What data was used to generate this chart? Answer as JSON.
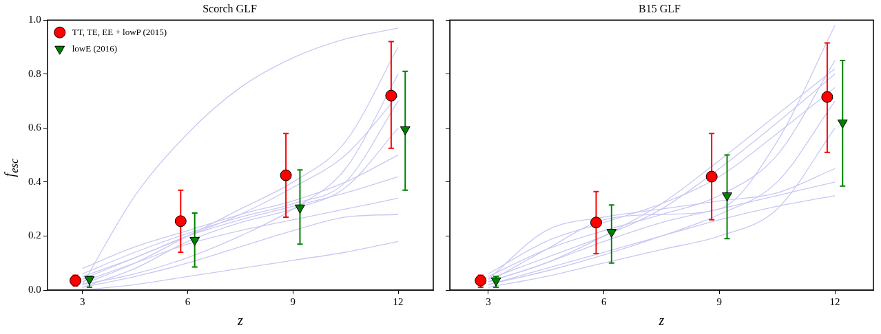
{
  "chart_data": [
    {
      "type": "scatter",
      "title": "Scorch GLF",
      "xlabel": "z",
      "ylabel": "f$_{esc}$",
      "xlim": [
        2,
        13
      ],
      "ylim": [
        0,
        1.0
      ],
      "xticks": [
        3,
        6,
        9,
        12
      ],
      "yticks": [
        {
          "value": 0,
          "label": "0.0"
        },
        {
          "value": 0.2,
          "label": "0.2"
        },
        {
          "value": 0.4,
          "label": "0.4"
        },
        {
          "value": 0.6,
          "label": "0.6"
        },
        {
          "value": 0.8,
          "label": "0.8"
        },
        {
          "value": 1.0,
          "label": "1.0"
        }
      ],
      "grid": false,
      "legend": "top left",
      "series": [
        {
          "name": "TT, TE, EE + lowP (2015)",
          "color": "#ff0000",
          "marker": "circle",
          "x": [
            2.8,
            5.8,
            8.8,
            11.8
          ],
          "values": [
            0.035,
            0.255,
            0.425,
            0.72
          ],
          "errors": [
            [
              0.015,
              0.055
            ],
            [
              0.14,
              0.37
            ],
            [
              0.27,
              0.58
            ],
            [
              0.525,
              0.92
            ]
          ]
        },
        {
          "name": "lowE (2016)",
          "color": "#008000",
          "marker": "triangle",
          "x": [
            3.2,
            6.2,
            9.2,
            12.2
          ],
          "values": [
            0.04,
            0.185,
            0.305,
            0.595
          ],
          "errors": [
            [
              0.01,
              0.05
            ],
            [
              0.085,
              0.285
            ],
            [
              0.17,
              0.445
            ],
            [
              0.37,
              0.81
            ]
          ]
        },
        {
          "type": "line",
          "color": "#c8c8f4",
          "x": [
            3,
            4.5,
            6,
            7.5,
            9,
            10.5,
            12
          ],
          "values": [
            0.02,
            0.35,
            0.58,
            0.75,
            0.86,
            0.93,
            0.97
          ]
        },
        {
          "type": "line",
          "color": "#c8c8f4",
          "x": [
            3,
            4.5,
            6,
            7.5,
            9,
            10.5,
            12
          ],
          "values": [
            0.05,
            0.12,
            0.2,
            0.26,
            0.31,
            0.36,
            0.42
          ]
        },
        {
          "type": "line",
          "color": "#c8c8f4",
          "x": [
            3,
            4.5,
            6,
            7.5,
            9,
            10.5,
            12
          ],
          "values": [
            0.03,
            0.1,
            0.17,
            0.22,
            0.26,
            0.3,
            0.34
          ]
        },
        {
          "type": "line",
          "color": "#c8c8f4",
          "x": [
            3,
            4.5,
            6,
            7.5,
            9,
            10.5,
            12
          ],
          "values": [
            0.01,
            0.08,
            0.18,
            0.25,
            0.3,
            0.38,
            0.6
          ]
        },
        {
          "type": "line",
          "color": "#c8c8f4",
          "x": [
            3,
            4.5,
            6,
            7.5,
            9,
            10.5,
            12
          ],
          "values": [
            0.06,
            0.14,
            0.21,
            0.27,
            0.32,
            0.4,
            0.7
          ]
        },
        {
          "type": "line",
          "color": "#c8c8f4",
          "x": [
            3,
            4.5,
            6,
            7.5,
            9,
            10.5,
            12
          ],
          "values": [
            0.02,
            0.06,
            0.12,
            0.2,
            0.3,
            0.45,
            0.8
          ]
        },
        {
          "type": "line",
          "color": "#c8c8f4",
          "x": [
            3,
            4.5,
            6,
            7.5,
            9,
            10.5,
            12
          ],
          "values": [
            0.0,
            0.02,
            0.05,
            0.08,
            0.11,
            0.14,
            0.18
          ]
        },
        {
          "type": "line",
          "color": "#c8c8f4",
          "x": [
            3,
            4.5,
            6,
            7.5,
            9,
            10.5,
            12
          ],
          "values": [
            0.04,
            0.12,
            0.2,
            0.28,
            0.38,
            0.5,
            0.72
          ]
        },
        {
          "type": "line",
          "color": "#c8c8f4",
          "x": [
            3,
            4.5,
            6,
            7.5,
            9,
            10.5,
            12
          ],
          "values": [
            0.08,
            0.16,
            0.22,
            0.28,
            0.33,
            0.4,
            0.5
          ]
        },
        {
          "type": "line",
          "color": "#c8c8f4",
          "x": [
            3,
            4.5,
            6,
            7.5,
            9,
            10.5,
            12
          ],
          "values": [
            0.01,
            0.05,
            0.1,
            0.16,
            0.22,
            0.27,
            0.28
          ]
        },
        {
          "type": "line",
          "color": "#c8c8f4",
          "x": [
            3,
            4.5,
            6,
            7.5,
            9,
            10.5,
            12
          ],
          "values": [
            0.02,
            0.1,
            0.2,
            0.3,
            0.4,
            0.55,
            0.9
          ]
        }
      ]
    },
    {
      "type": "scatter",
      "title": "B15 GLF",
      "xlabel": "z",
      "xlim": [
        2,
        13
      ],
      "ylim": [
        0,
        1.0
      ],
      "xticks": [
        3,
        6,
        9,
        12
      ],
      "yticks": [
        0,
        0.2,
        0.4,
        0.6,
        0.8,
        1.0
      ],
      "grid": false,
      "tick_labels": "x",
      "series": [
        {
          "color": "#ff0000",
          "marker": "circle",
          "x": [
            2.8,
            5.8,
            8.8,
            11.8
          ],
          "values": [
            0.035,
            0.25,
            0.42,
            0.715
          ],
          "errors": [
            [
              0.01,
              0.055
            ],
            [
              0.135,
              0.365
            ],
            [
              0.26,
              0.58
            ],
            [
              0.51,
              0.915
            ]
          ]
        },
        {
          "color": "#008000",
          "marker": "triangle",
          "x": [
            3.2,
            6.2,
            9.2,
            12.2
          ],
          "values": [
            0.035,
            0.215,
            0.35,
            0.62
          ],
          "errors": [
            [
              0.01,
              0.05
            ],
            [
              0.1,
              0.315
            ],
            [
              0.19,
              0.5
            ],
            [
              0.385,
              0.85
            ]
          ]
        },
        {
          "type": "line",
          "color": "#c8c8f4",
          "x": [
            3,
            4.5,
            6,
            7.5,
            9,
            10.5,
            12
          ],
          "values": [
            0.03,
            0.15,
            0.26,
            0.28,
            0.3,
            0.55,
            0.98
          ]
        },
        {
          "type": "line",
          "color": "#c8c8f4",
          "x": [
            3,
            4.5,
            6,
            7.5,
            9,
            10.5,
            12
          ],
          "values": [
            0.04,
            0.12,
            0.2,
            0.3,
            0.45,
            0.62,
            0.8
          ]
        },
        {
          "type": "line",
          "color": "#c8c8f4",
          "x": [
            3,
            4.5,
            6,
            7.5,
            9,
            10.5,
            12
          ],
          "values": [
            0.02,
            0.08,
            0.14,
            0.2,
            0.26,
            0.31,
            0.35
          ]
        },
        {
          "type": "line",
          "color": "#c8c8f4",
          "x": [
            3,
            4.5,
            6,
            7.5,
            9,
            10.5,
            12
          ],
          "values": [
            0.05,
            0.15,
            0.22,
            0.28,
            0.35,
            0.5,
            0.85
          ]
        },
        {
          "type": "line",
          "color": "#c8c8f4",
          "x": [
            3,
            4.5,
            6,
            7.5,
            9,
            10.5,
            12
          ],
          "values": [
            0.03,
            0.1,
            0.18,
            0.25,
            0.3,
            0.35,
            0.4
          ]
        },
        {
          "type": "line",
          "color": "#c8c8f4",
          "x": [
            3,
            4.5,
            6,
            7.5,
            9,
            10.5,
            12
          ],
          "values": [
            0.01,
            0.05,
            0.1,
            0.15,
            0.2,
            0.3,
            0.6
          ]
        },
        {
          "type": "line",
          "color": "#c8c8f4",
          "x": [
            3,
            4.5,
            6,
            7.5,
            9,
            10.5,
            12
          ],
          "values": [
            0.06,
            0.18,
            0.25,
            0.32,
            0.42,
            0.58,
            0.75
          ]
        },
        {
          "type": "line",
          "color": "#c8c8f4",
          "x": [
            3,
            4.5,
            6,
            7.5,
            9,
            10.5,
            12
          ],
          "values": [
            0.02,
            0.07,
            0.13,
            0.2,
            0.28,
            0.4,
            0.7
          ]
        },
        {
          "type": "line",
          "color": "#c8c8f4",
          "x": [
            3,
            4.5,
            6,
            7.5,
            9,
            10.5,
            12
          ],
          "values": [
            0.04,
            0.22,
            0.27,
            0.3,
            0.33,
            0.36,
            0.45
          ]
        },
        {
          "type": "line",
          "color": "#c8c8f4",
          "x": [
            3,
            4.5,
            6,
            7.5,
            9,
            10.5,
            12
          ],
          "values": [
            0.03,
            0.1,
            0.2,
            0.32,
            0.48,
            0.65,
            0.82
          ]
        }
      ]
    }
  ]
}
